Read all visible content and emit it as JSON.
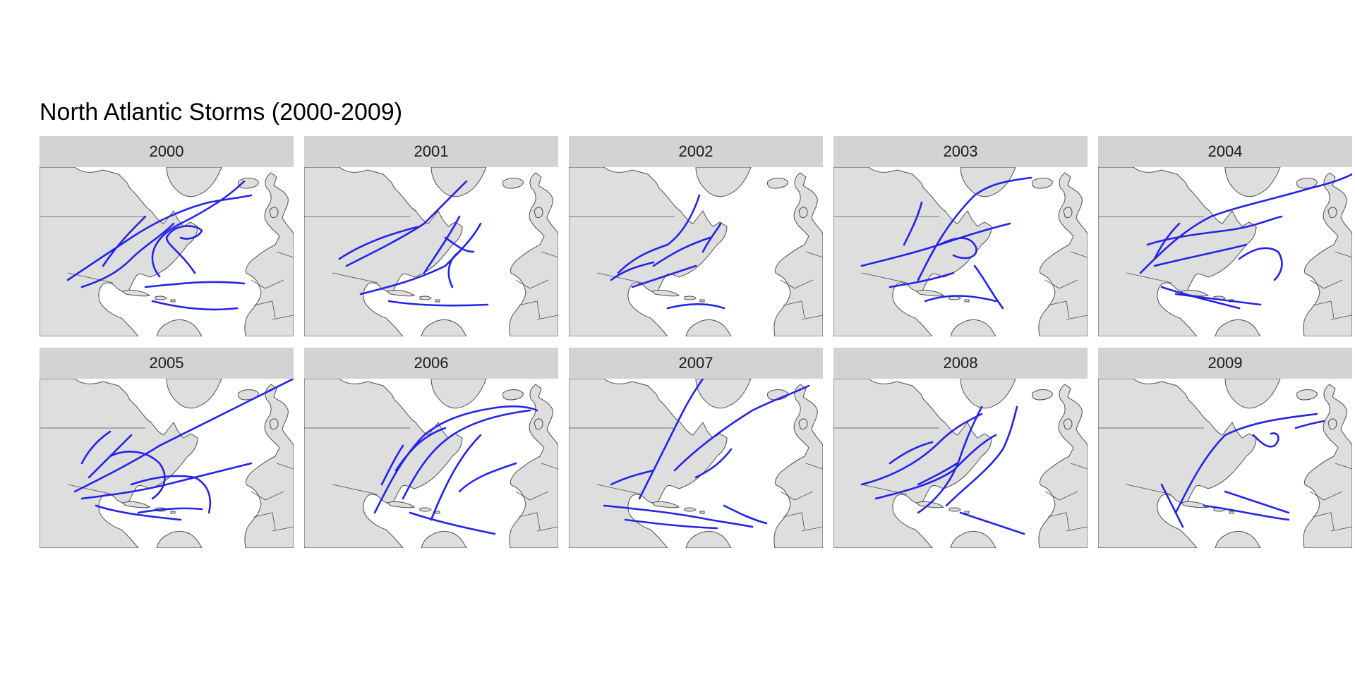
{
  "title": "North Atlantic Storms (2000-2009)",
  "colors": {
    "track": "#2323e8",
    "land": "#dedede",
    "border": "#4d4d4d",
    "strip": "#d3d3d3",
    "ocean": "#ffffff"
  },
  "facets": [
    {
      "year": "2000"
    },
    {
      "year": "2001"
    },
    {
      "year": "2002"
    },
    {
      "year": "2003"
    },
    {
      "year": "2004"
    },
    {
      "year": "2005"
    },
    {
      "year": "2006"
    },
    {
      "year": "2007"
    },
    {
      "year": "2008"
    },
    {
      "year": "2009"
    }
  ]
}
